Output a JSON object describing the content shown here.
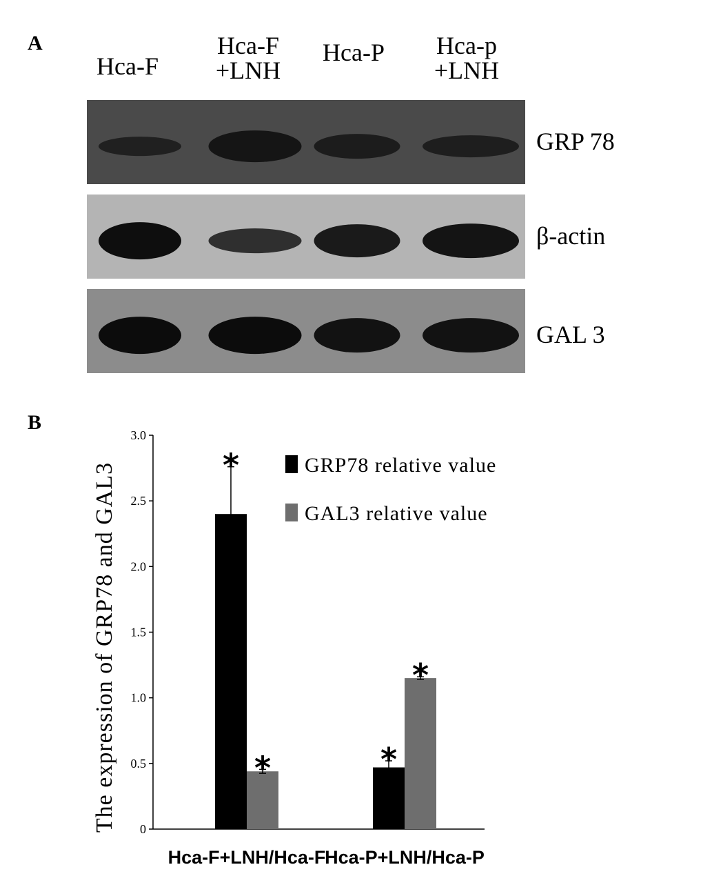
{
  "panel_a": {
    "label": "A",
    "lanes": [
      {
        "line1": "Hca-F",
        "line2": ""
      },
      {
        "line1": "Hca-F",
        "line2": "+LNH"
      },
      {
        "line1": "Hca-P",
        "line2": ""
      },
      {
        "line1": "Hca-p",
        "line2": "+LNH"
      }
    ],
    "blots": [
      {
        "name": "GRP 78",
        "membrane": "#4a4a4a",
        "band": "#101010",
        "intensity": [
          0.35,
          0.8,
          0.55,
          0.45
        ]
      },
      {
        "name": "β-actin",
        "membrane": "#b4b4b4",
        "band": "#0e0e0e",
        "intensity": [
          1.0,
          0.55,
          0.85,
          0.9
        ]
      },
      {
        "name": "GAL 3",
        "membrane": "#8c8c8c",
        "band": "#0c0c0c",
        "intensity": [
          1.0,
          1.0,
          0.9,
          0.9
        ]
      }
    ]
  },
  "panel_b": {
    "label": "B"
  },
  "chart_data": {
    "type": "bar",
    "categories": [
      "Hca-F+LNH/Hca-F",
      "Hca-P+LNH/Hca-P"
    ],
    "series": [
      {
        "name": "GRP78 relative value",
        "color": "#000000",
        "values": [
          2.4,
          0.47
        ],
        "errors": [
          0.36,
          0.05
        ],
        "significant": [
          true,
          true
        ]
      },
      {
        "name": "GAL3 relative value",
        "color": "#6e6e6e",
        "values": [
          0.44,
          1.15
        ],
        "errors": [
          0.015,
          0.01
        ],
        "significant": [
          true,
          true
        ]
      }
    ],
    "ylabel": "The expression of GRP78 and GAL3",
    "ylim": [
      0,
      3.0
    ],
    "yticks": [
      "0",
      "0.5",
      "1.0",
      "1.5",
      "2.0",
      "2.5",
      "3.0"
    ],
    "significance_marker": "*",
    "grid": false,
    "legend_position": "top-right"
  }
}
